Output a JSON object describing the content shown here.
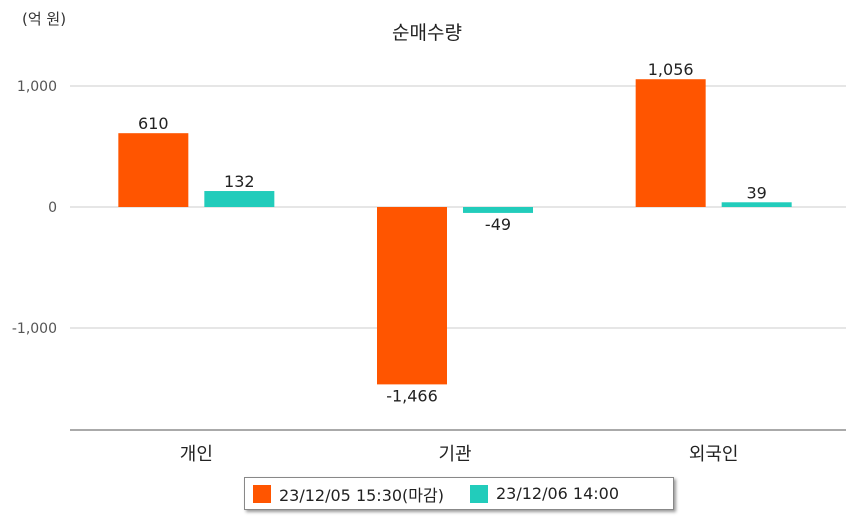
{
  "unit_label": "(억 원)",
  "chart_data": {
    "type": "bar",
    "title": "순매수량",
    "categories": [
      "개인",
      "기관",
      "외국인"
    ],
    "series": [
      {
        "name": "23/12/05 15:30(마감)",
        "color": "#ff5500",
        "values": [
          610,
          -1466,
          1056
        ],
        "labels": [
          "610",
          "-1,466",
          "1,056"
        ]
      },
      {
        "name": "23/12/06 14:00",
        "color": "#22ccbb",
        "values": [
          132,
          -49,
          39
        ],
        "labels": [
          "132",
          "-49",
          "39"
        ]
      }
    ],
    "y_ticks": [
      1000,
      0,
      -1000
    ],
    "y_tick_labels": [
      "1,000",
      "0",
      "-1,000"
    ],
    "ylim": [
      -1840,
      1250
    ],
    "grid": true,
    "legend_position": "bottom"
  }
}
